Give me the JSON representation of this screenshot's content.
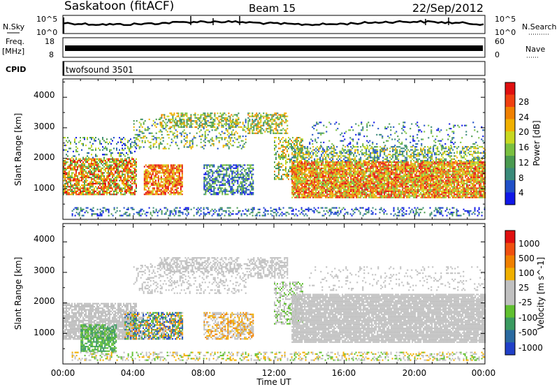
{
  "header": {
    "station": "Saskatoon (fitACF)",
    "beam": "Beam 15",
    "date": "22/Sep/2012"
  },
  "top_panels": {
    "nsky_label": "N.Sky",
    "nsky_ticks": [
      "10^5",
      "10^0"
    ],
    "nsearch_label": "N.Search",
    "nsearch_ticks": [
      "10^5",
      "10^0"
    ],
    "freq_label_1": "Freq.",
    "freq_label_2": "[MHz]",
    "freq_ticks": [
      "18",
      "8"
    ],
    "nave_label": "Nave",
    "nave_ticks": [
      "60",
      "0"
    ],
    "cpid_label": "CPID",
    "cpid_value": "twofsound 3501"
  },
  "colors": {
    "power_scale": [
      "#1018e8",
      "#2050c8",
      "#3a8a7a",
      "#4a9a50",
      "#7ac040",
      "#c8d820",
      "#f0b000",
      "#f08000",
      "#f04010",
      "#e01010"
    ],
    "velocity_scale": [
      "#2040c8",
      "#2a6aa0",
      "#3a9a60",
      "#60c030",
      "#c0c0c0",
      "#c0c0c0",
      "#f0b000",
      "#f08000",
      "#f05010",
      "#e01010"
    ]
  },
  "chart_data": [
    {
      "type": "heatmap",
      "panel": "power",
      "xlabel": "",
      "ylabel": "Slant Range [km]",
      "xlim": [
        0,
        24
      ],
      "ylim": [
        0,
        4600
      ],
      "yticks": [
        "4000",
        "3000",
        "2000",
        "1000"
      ],
      "colorbar": {
        "label": "Power [dB]",
        "ticks": [
          "28",
          "24",
          "20",
          "16",
          "12",
          "8",
          "4"
        ]
      }
    },
    {
      "type": "heatmap",
      "panel": "velocity",
      "xlabel": "Time UT",
      "ylabel": "Slant Range [km]",
      "xlim": [
        0,
        24
      ],
      "ylim": [
        0,
        4600
      ],
      "yticks": [
        "4000",
        "3000",
        "2000",
        "1000"
      ],
      "xticks": [
        "00:00",
        "04:00",
        "08:00",
        "12:00",
        "16:00",
        "20:00",
        "00:00"
      ],
      "colorbar": {
        "label": "Velocity [m s^-1]",
        "ticks": [
          "1000",
          "500",
          "100",
          "25",
          "-25",
          "-100",
          "-500",
          "-1000"
        ]
      }
    }
  ]
}
